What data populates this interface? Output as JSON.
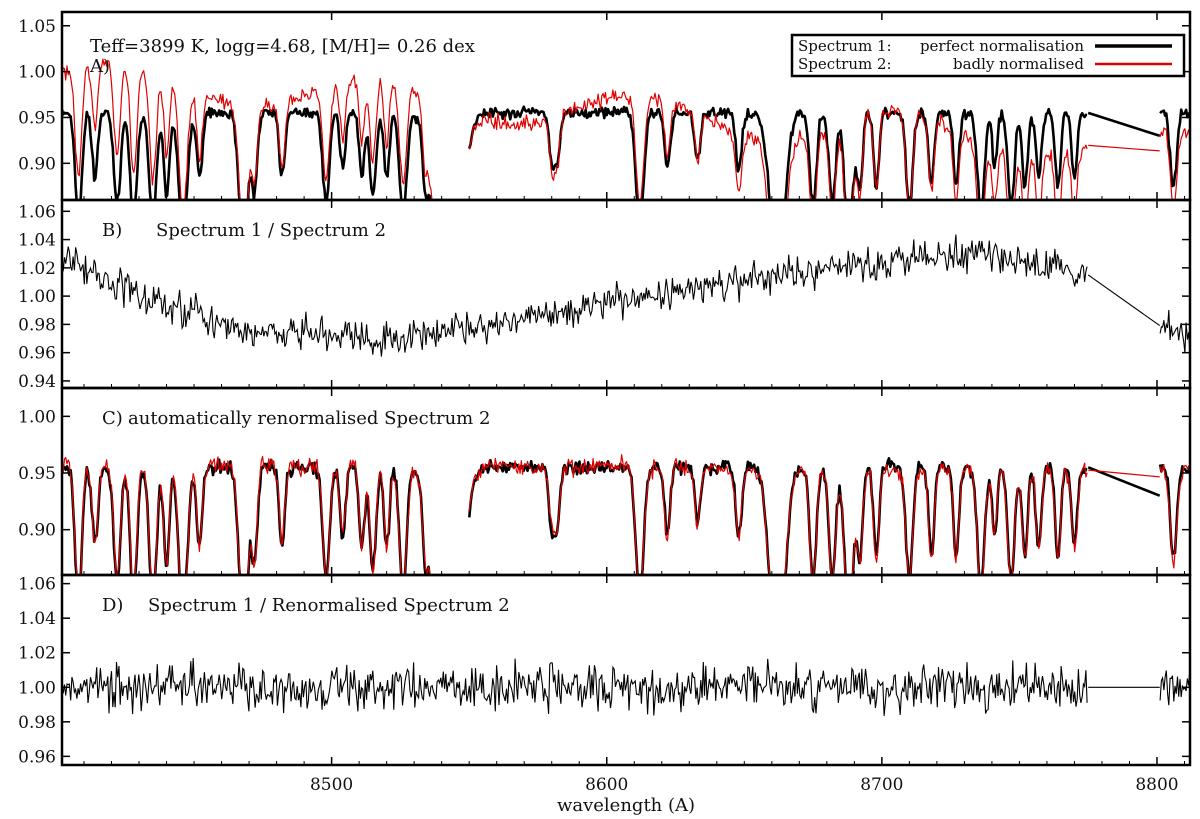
{
  "figure": {
    "header_text": "Teff=3899 K, logg=4.68, [M/H]= 0.26 dex",
    "xlabel": "wavelength (A)"
  },
  "colors": {
    "spectrum1": "#000000",
    "spectrum2": "#e00000",
    "frame": "#000000"
  },
  "chart_data": [
    {
      "type": "line",
      "panel": "A",
      "title": "A)",
      "xlim": [
        8402,
        8812
      ],
      "ylim": [
        0.86,
        1.065
      ],
      "yticks": [
        "0.90",
        "0.95",
        "1.00",
        "1.05"
      ],
      "xticks": [
        8500,
        8600,
        8700,
        8800
      ],
      "legend": {
        "placement": "top-right",
        "entries": [
          {
            "series": "Spectrum 1:",
            "label": "perfect normalisation",
            "color": "#000000"
          },
          {
            "series": "Spectrum 2:",
            "label": "badly normalised",
            "color": "#e00000"
          }
        ]
      },
      "series": [
        {
          "name": "Spectrum 1",
          "continuum": 0.955,
          "tilt": [
            0,
            0
          ],
          "color": "#000000"
        },
        {
          "name": "Spectrum 2",
          "continuum": 0.955,
          "tilt": [
            0.04,
            -0.04
          ],
          "color": "#e00000"
        }
      ]
    },
    {
      "type": "line",
      "panel": "B",
      "title": "B)",
      "label": "Spectrum 1 / Spectrum 2",
      "xlim": [
        8402,
        8812
      ],
      "ylim": [
        0.935,
        1.068
      ],
      "yticks": [
        "0.94",
        "0.96",
        "0.98",
        "1.00",
        "1.02",
        "1.04",
        "1.06"
      ],
      "xticks": [
        8500,
        8600,
        8700,
        8800
      ],
      "trend": [
        [
          8402,
          1.03
        ],
        [
          8430,
          1.0
        ],
        [
          8470,
          0.975
        ],
        [
          8520,
          0.97
        ],
        [
          8560,
          0.98
        ],
        [
          8600,
          0.995
        ],
        [
          8650,
          1.01
        ],
        [
          8700,
          1.025
        ],
        [
          8740,
          1.03
        ],
        [
          8775,
          1.015
        ],
        [
          8800,
          0.98
        ],
        [
          8812,
          0.97
        ]
      ],
      "noise": 0.012
    },
    {
      "type": "line",
      "panel": "C",
      "title": "C)",
      "label": "automatically renormalised Spectrum 2",
      "xlim": [
        8402,
        8812
      ],
      "ylim": [
        0.86,
        1.025
      ],
      "yticks": [
        "0.90",
        "0.95",
        "1.00"
      ],
      "xticks": [
        8500,
        8600,
        8700,
        8800
      ],
      "series": [
        {
          "name": "Spectrum 1",
          "continuum": 0.955,
          "tilt": [
            0,
            0
          ],
          "color": "#000000"
        },
        {
          "name": "Renormalised Spectrum 2",
          "continuum": 0.955,
          "tilt": [
            0.003,
            -0.003
          ],
          "color": "#e00000"
        }
      ]
    },
    {
      "type": "line",
      "panel": "D",
      "title": "D)",
      "label": "Spectrum 1 / Renormalised Spectrum 2",
      "xlim": [
        8402,
        8812
      ],
      "ylim": [
        0.955,
        1.065
      ],
      "yticks": [
        "0.96",
        "0.98",
        "1.00",
        "1.02",
        "1.04",
        "1.06"
      ],
      "xticks": [
        8500,
        8600,
        8700,
        8800
      ],
      "trend": [
        [
          8402,
          1.0
        ],
        [
          8812,
          1.0
        ]
      ],
      "noise": 0.013
    }
  ],
  "spectrum_model": {
    "gaps": [
      [
        8542,
        8550
      ],
      [
        8775,
        8801
      ]
    ],
    "lines": [
      {
        "x": 8408,
        "depth": 0.12,
        "w": 1.2
      },
      {
        "x": 8414,
        "depth": 0.07,
        "w": 1.0
      },
      {
        "x": 8422,
        "depth": 0.1,
        "w": 1.2
      },
      {
        "x": 8428,
        "depth": 0.12,
        "w": 1.2
      },
      {
        "x": 8435,
        "depth": 0.12,
        "w": 1.3
      },
      {
        "x": 8440,
        "depth": 0.09,
        "w": 1.0
      },
      {
        "x": 8446,
        "depth": 0.14,
        "w": 1.5
      },
      {
        "x": 8452,
        "depth": 0.07,
        "w": 1.0
      },
      {
        "x": 8468,
        "depth": 0.15,
        "w": 1.6
      },
      {
        "x": 8472,
        "depth": 0.08,
        "w": 1.0
      },
      {
        "x": 8482,
        "depth": 0.07,
        "w": 1.0
      },
      {
        "x": 8498,
        "depth": 0.1,
        "w": 1.2
      },
      {
        "x": 8504,
        "depth": 0.06,
        "w": 1.0
      },
      {
        "x": 8511,
        "depth": 0.07,
        "w": 1.0
      },
      {
        "x": 8515,
        "depth": 0.09,
        "w": 1.1
      },
      {
        "x": 8520,
        "depth": 0.07,
        "w": 1.0
      },
      {
        "x": 8526,
        "depth": 0.11,
        "w": 1.3
      },
      {
        "x": 8534,
        "depth": 0.05,
        "w": 0.9
      },
      {
        "x": 8542,
        "depth": 0.3,
        "w": 4.0
      },
      {
        "x": 8580,
        "depth": 0.05,
        "w": 1.0
      },
      {
        "x": 8582,
        "depth": 0.05,
        "w": 1.0
      },
      {
        "x": 8612,
        "depth": 0.12,
        "w": 1.4
      },
      {
        "x": 8622,
        "depth": 0.06,
        "w": 1.0
      },
      {
        "x": 8633,
        "depth": 0.05,
        "w": 1.0
      },
      {
        "x": 8648,
        "depth": 0.06,
        "w": 1.1
      },
      {
        "x": 8662,
        "depth": 0.18,
        "w": 2.6
      },
      {
        "x": 8675,
        "depth": 0.1,
        "w": 1.2
      },
      {
        "x": 8682,
        "depth": 0.1,
        "w": 1.2
      },
      {
        "x": 8688,
        "depth": 0.14,
        "w": 1.5
      },
      {
        "x": 8692,
        "depth": 0.08,
        "w": 1.0
      },
      {
        "x": 8698,
        "depth": 0.08,
        "w": 1.0
      },
      {
        "x": 8710,
        "depth": 0.1,
        "w": 1.2
      },
      {
        "x": 8718,
        "depth": 0.08,
        "w": 1.0
      },
      {
        "x": 8727,
        "depth": 0.08,
        "w": 1.0
      },
      {
        "x": 8736,
        "depth": 0.11,
        "w": 1.3
      },
      {
        "x": 8741,
        "depth": 0.06,
        "w": 0.9
      },
      {
        "x": 8747,
        "depth": 0.1,
        "w": 1.2
      },
      {
        "x": 8752,
        "depth": 0.08,
        "w": 1.0
      },
      {
        "x": 8757,
        "depth": 0.07,
        "w": 1.0
      },
      {
        "x": 8764,
        "depth": 0.08,
        "w": 1.0
      },
      {
        "x": 8770,
        "depth": 0.07,
        "w": 1.0
      },
      {
        "x": 8806,
        "depth": 0.08,
        "w": 1.2
      }
    ]
  }
}
